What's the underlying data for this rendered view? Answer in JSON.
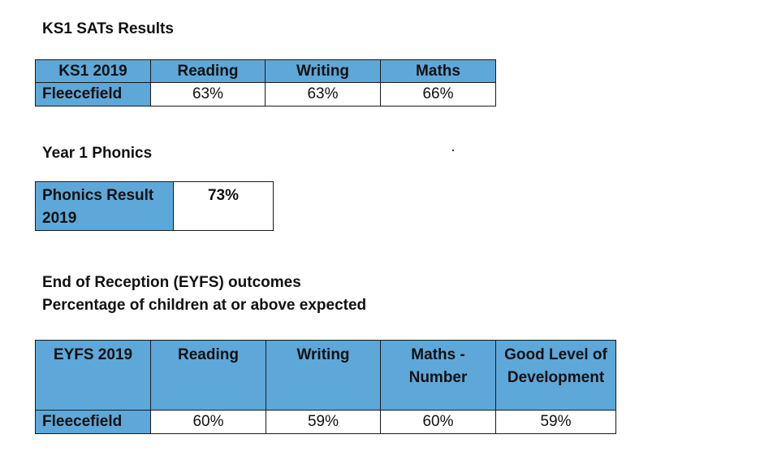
{
  "ks1": {
    "heading": "KS1 SATs Results",
    "headers": [
      "KS1 2019",
      "Reading",
      "Writing",
      "Maths"
    ],
    "row_label": "Fleecefield",
    "values": [
      "63%",
      "63%",
      "66%"
    ]
  },
  "phonics": {
    "heading": "Year 1 Phonics",
    "label": "Phonics Result 2019",
    "value": "73%"
  },
  "eyfs": {
    "heading_line1": "End of Reception (EYFS) outcomes",
    "heading_line2": "Percentage of children at or above expected",
    "headers": [
      "EYFS 2019",
      "Reading",
      "Writing",
      "Maths - Number",
      "Good Level of Development"
    ],
    "row_label": "Fleecefield",
    "values": [
      "60%",
      "59%",
      "60%",
      "59%"
    ]
  },
  "colors": {
    "header_fill": "#5ea7d9",
    "border": "#1a1a1a"
  }
}
